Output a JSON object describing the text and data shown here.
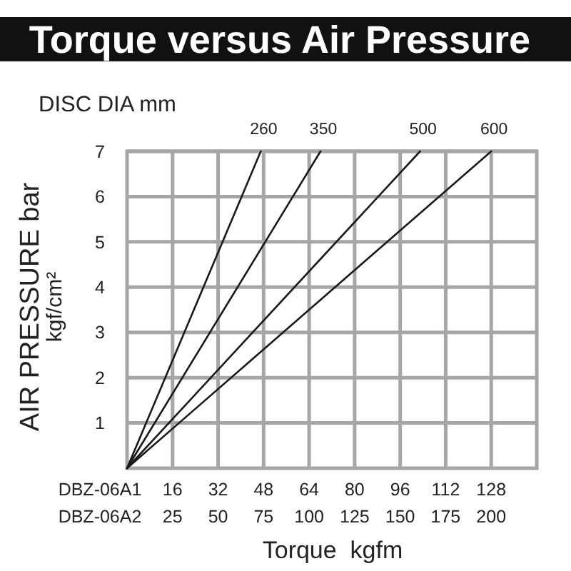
{
  "chart_data": {
    "type": "line",
    "title": "Torque versus Air Pressure",
    "xlabel": "Torque  kgfm",
    "ylabel": "AIR PRESSURE bar\nkgf/cm²",
    "annotations": [
      "DISC DIA mm",
      "DBZ-06A1",
      "DBZ-06A2"
    ],
    "series": [
      {
        "name": "260",
        "color": "#1a1a1a",
        "x": [
          0,
          47
        ],
        "values": [
          0,
          7
        ]
      },
      {
        "name": "350",
        "color": "#1a1a1a",
        "x": [
          0,
          68
        ],
        "values": [
          0,
          7
        ]
      },
      {
        "name": "500",
        "color": "#1a1a1a",
        "x": [
          0,
          103
        ],
        "values": [
          0,
          7
        ]
      },
      {
        "name": "600",
        "color": "#1a1a1a",
        "x": [
          0,
          128
        ],
        "values": [
          0,
          7
        ]
      }
    ],
    "xlim": [
      0,
      144
    ],
    "xticks": [
      16,
      32,
      48,
      64,
      80,
      96,
      112,
      128
    ],
    "x2lim": [
      0,
      225
    ],
    "x2ticks": [
      25,
      50,
      75,
      100,
      125,
      150,
      175,
      200
    ],
    "ylim": [
      0,
      7
    ],
    "yticks": [
      1,
      2,
      3,
      4,
      5,
      6,
      7
    ],
    "grid": true
  }
}
